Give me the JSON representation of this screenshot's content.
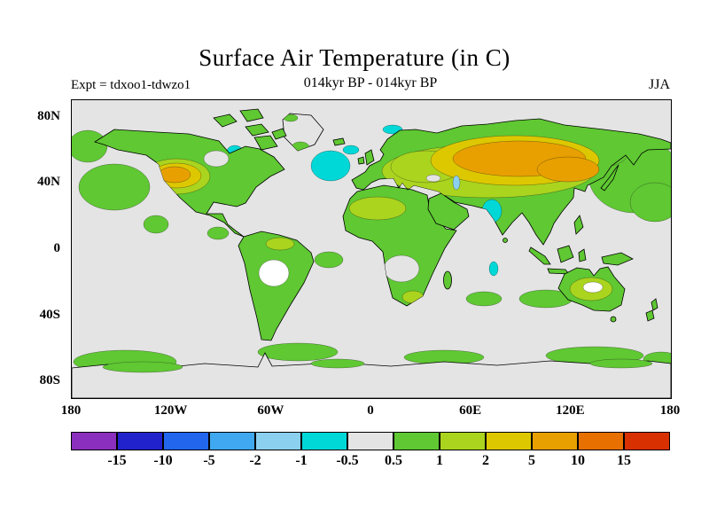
{
  "header": {
    "title": "Surface Air Temperature (in C)",
    "expt_label": "Expt = tdxoo1-tdwzo1",
    "period_label": "014kyr BP - 014kyr BP",
    "season_label": "JJA"
  },
  "axes": {
    "lat_ticks": [
      {
        "label": "80N",
        "value": 80
      },
      {
        "label": "40N",
        "value": 40
      },
      {
        "label": "0",
        "value": 0
      },
      {
        "label": "40S",
        "value": -40
      },
      {
        "label": "80S",
        "value": -80
      }
    ],
    "lon_ticks": [
      {
        "label": "180",
        "value": -180
      },
      {
        "label": "120W",
        "value": -120
      },
      {
        "label": "60W",
        "value": -60
      },
      {
        "label": "0",
        "value": 0
      },
      {
        "label": "60E",
        "value": 60
      },
      {
        "label": "120E",
        "value": 120
      },
      {
        "label": "180",
        "value": 180
      }
    ]
  },
  "colorbar": {
    "boundary_labels": [
      "-15",
      "-10",
      "-5",
      "-2",
      "-1",
      "-0.5",
      "0.5",
      "1",
      "2",
      "5",
      "10",
      "15"
    ],
    "colors": [
      "#8a2fbe",
      "#2222cc",
      "#2266ee",
      "#3fa8f0",
      "#8cd0f0",
      "#00d8d8",
      "#e4e4e4",
      "#5fc832",
      "#aad41e",
      "#ddc800",
      "#e8a000",
      "#e87000",
      "#d83000"
    ]
  },
  "chart_data": {
    "type": "heatmap",
    "title": "Surface Air Temperature (in C)",
    "experiment": "Expt = tdxoo1-tdwzo1",
    "period": "014kyr BP - 014kyr BP",
    "season": "JJA",
    "field": "surface air temperature difference",
    "units": "degrees C",
    "projection": "equirectangular world map",
    "x_range_deg": [
      -180,
      180
    ],
    "y_range_deg": [
      -90,
      90
    ],
    "xlabel_ticks": [
      "180",
      "120W",
      "60W",
      "0",
      "60E",
      "120E",
      "180"
    ],
    "ylabel_ticks": [
      "80N",
      "40N",
      "0",
      "40S",
      "80S"
    ],
    "contour_levels_c": [
      -15,
      -10,
      -5,
      -2,
      -1,
      -0.5,
      0.5,
      1,
      2,
      5,
      10,
      15
    ],
    "palette_hex": [
      "#8a2fbe",
      "#2222cc",
      "#2266ee",
      "#3fa8f0",
      "#8cd0f0",
      "#00d8d8",
      "#e4e4e4",
      "#5fc832",
      "#aad41e",
      "#ddc800",
      "#e8a000",
      "#e87000",
      "#d83000"
    ],
    "legend_position": "bottom horizontal colorbar",
    "grid": false,
    "notable_features": [
      {
        "region": "global oceans (background)",
        "value_range_c": "-0.5 to 0.5"
      },
      {
        "region": "most Northern Hemisphere land (North America, Europe, Africa, Asia)",
        "value_range_c": "0.5 to 2"
      },
      {
        "region": "central Eurasia / Siberia belt",
        "value_range_c": "2 to 5"
      },
      {
        "region": "west-central North America patch",
        "value_range_c": "2 to 5"
      },
      {
        "region": "North Atlantic south of Iceland/Greenland",
        "value_range_c": "-1 to -0.5"
      },
      {
        "region": "northwest India / Pakistan",
        "value_range_c": "-1 to -0.5"
      },
      {
        "region": "Hudson Bay patch",
        "value_range_c": "-1 to -0.5"
      },
      {
        "region": "NE Pacific and NW Pacific patches",
        "value_range_c": "0.5 to 1"
      },
      {
        "region": "Southern Ocean band near 55S",
        "value_range_c": "0.5 to 1"
      },
      {
        "region": "Australia interior",
        "value_range_c": "1 to 2"
      },
      {
        "region": "interior South America and central Africa",
        "value_range_c": "near 0"
      }
    ]
  }
}
